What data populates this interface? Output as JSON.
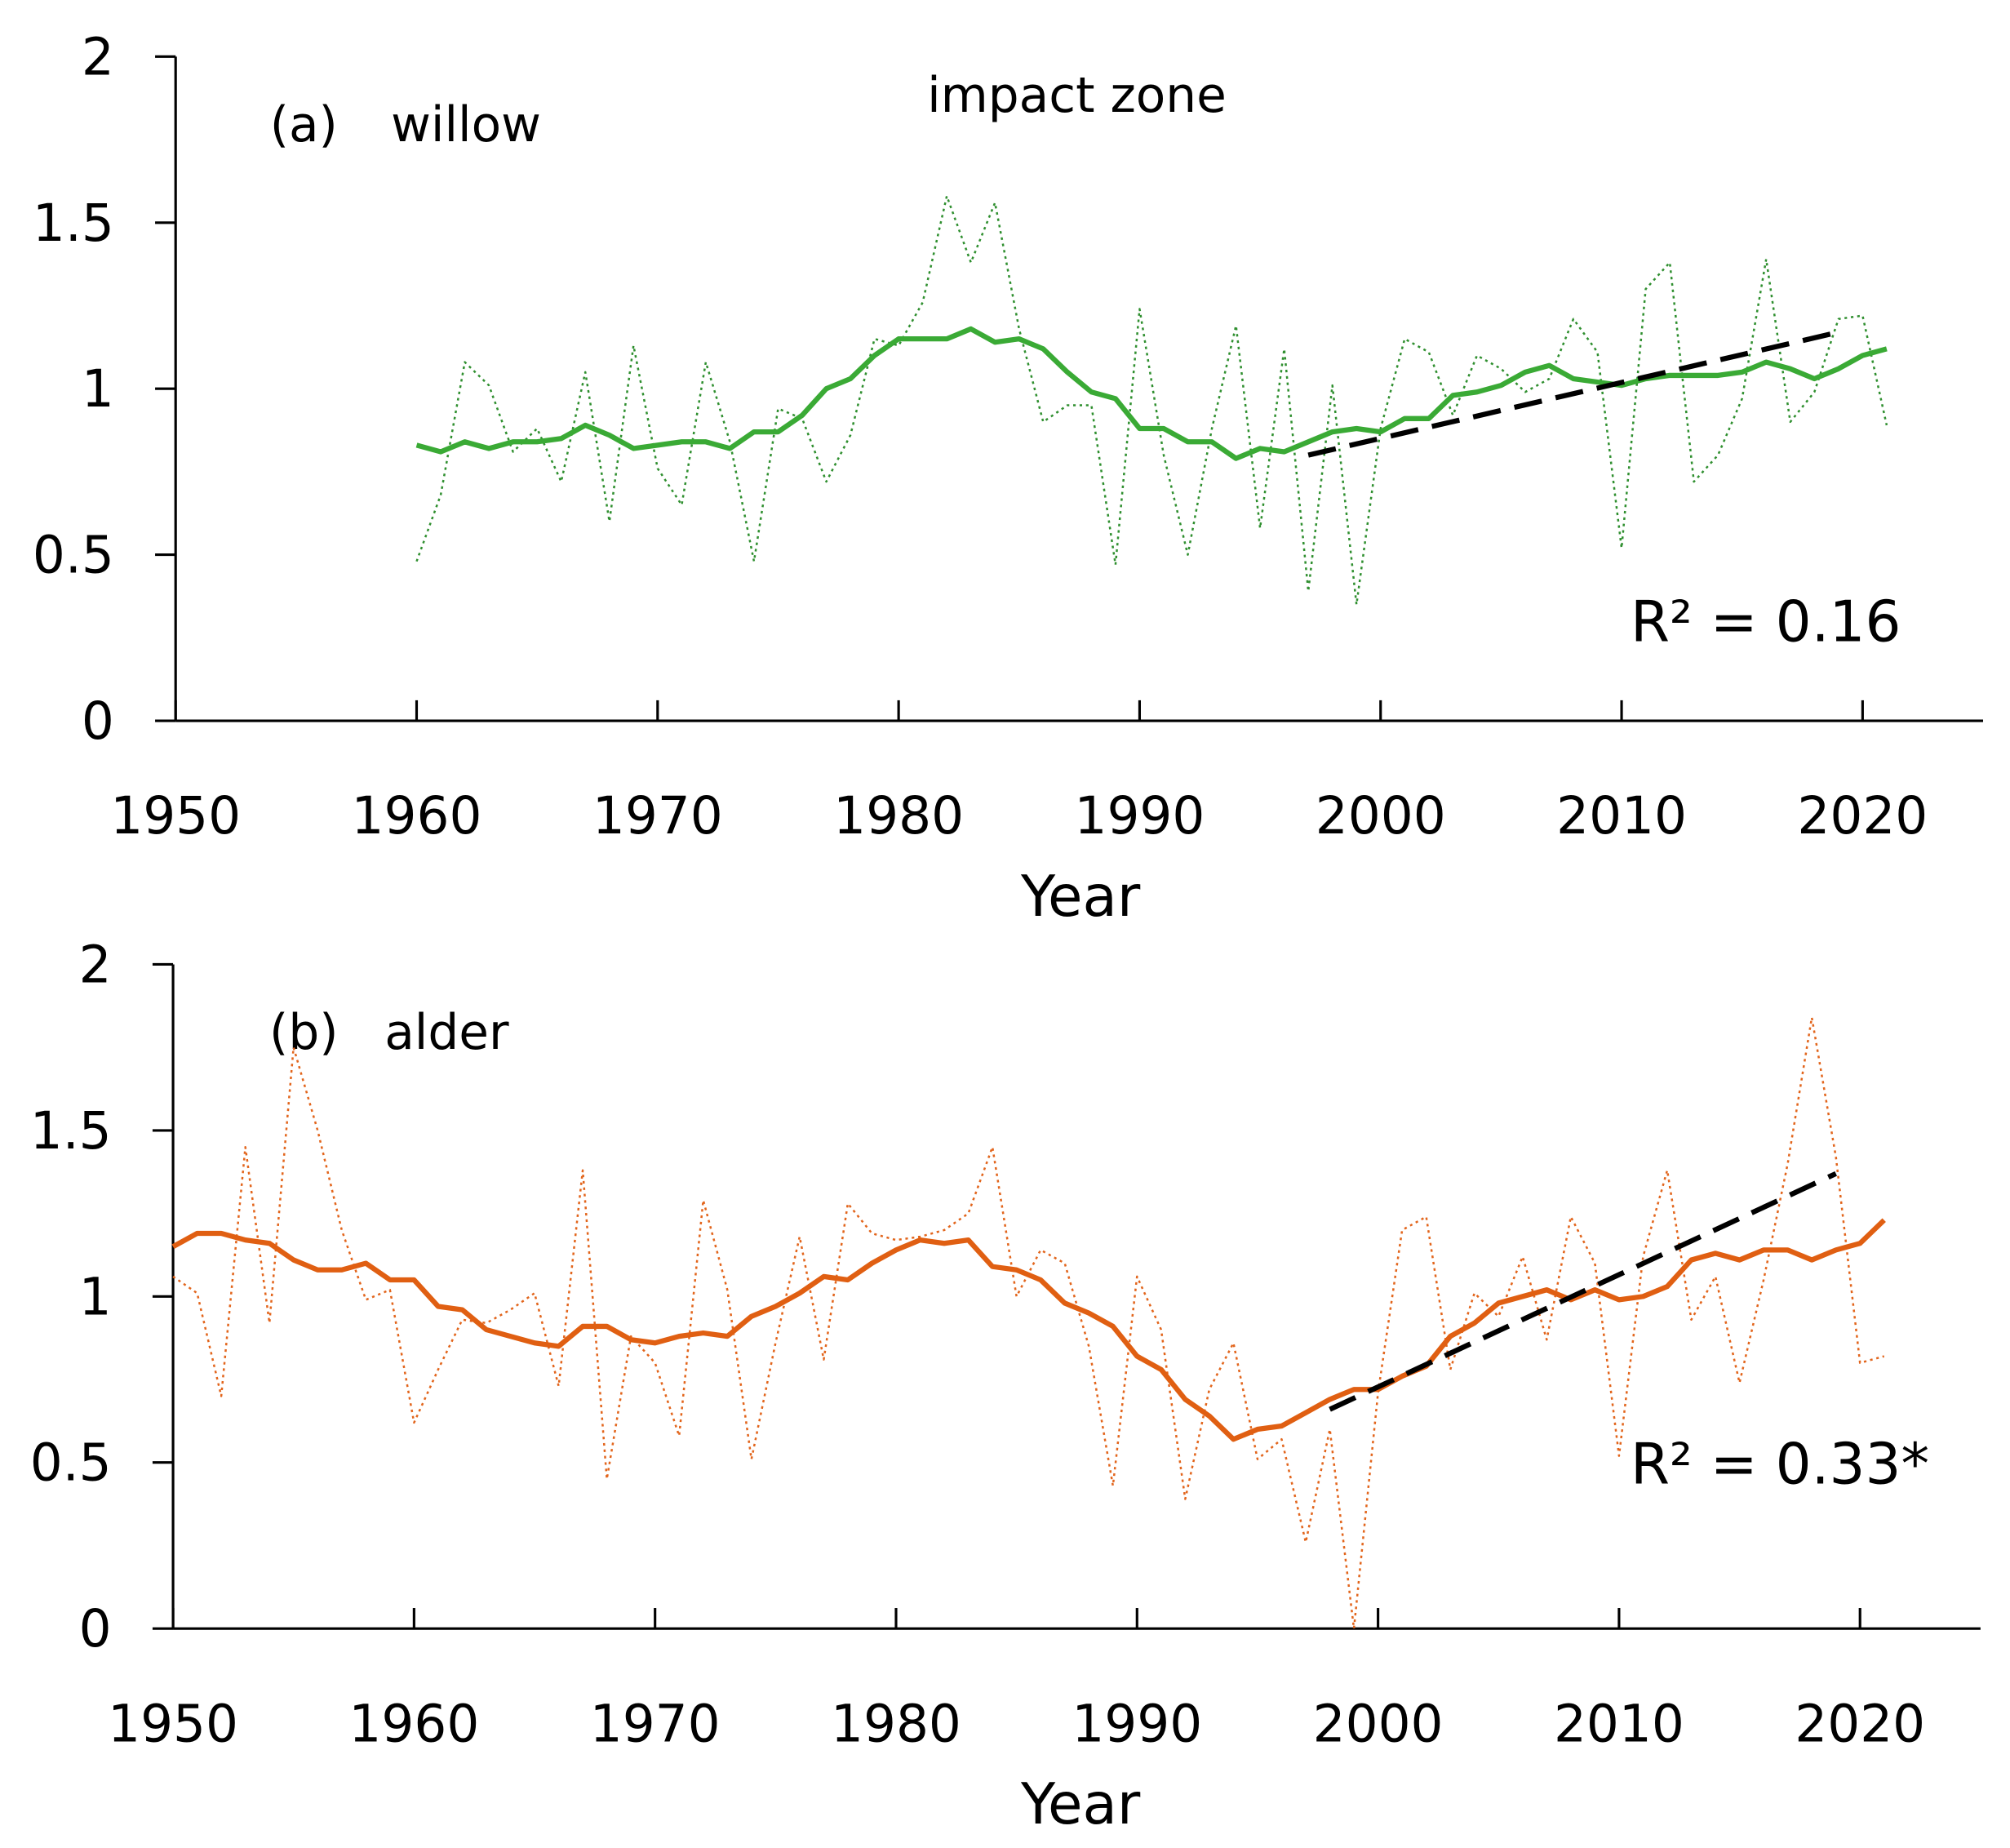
{
  "chart_data": [
    {
      "type": "line",
      "panel_label": "(a)",
      "species": "willow",
      "title": "impact zone",
      "annotation": "R² = 0.16",
      "xlabel": "Year",
      "xlim": [
        1950,
        2025
      ],
      "xticks": [
        1950,
        1960,
        1970,
        1980,
        1990,
        2000,
        2010,
        2020
      ],
      "ylim": [
        0,
        2
      ],
      "yticks": [
        0,
        0.5,
        1,
        1.5,
        2
      ],
      "x": [
        1960,
        1961,
        1962,
        1963,
        1964,
        1965,
        1966,
        1967,
        1968,
        1969,
        1970,
        1971,
        1972,
        1973,
        1974,
        1975,
        1976,
        1977,
        1978,
        1979,
        1980,
        1981,
        1982,
        1983,
        1984,
        1985,
        1986,
        1987,
        1988,
        1989,
        1990,
        1991,
        1992,
        1993,
        1994,
        1995,
        1996,
        1997,
        1998,
        1999,
        2000,
        2001,
        2002,
        2003,
        2004,
        2005,
        2006,
        2007,
        2008,
        2009,
        2010,
        2011,
        2012,
        2013,
        2014,
        2015,
        2016,
        2017,
        2018,
        2019,
        2020,
        2021
      ],
      "series": [
        {
          "style": "dotted",
          "color": "#2f8f2f",
          "values": [
            0.48,
            0.68,
            1.08,
            1.01,
            0.81,
            0.88,
            0.72,
            1.05,
            0.6,
            1.13,
            0.76,
            0.65,
            1.08,
            0.84,
            0.48,
            0.94,
            0.91,
            0.72,
            0.86,
            1.15,
            1.13,
            1.26,
            1.58,
            1.38,
            1.56,
            1.18,
            0.9,
            0.95,
            0.95,
            0.47,
            1.24,
            0.8,
            0.5,
            0.88,
            1.19,
            0.58,
            1.12,
            0.39,
            1.01,
            0.35,
            0.88,
            1.15,
            1.11,
            0.92,
            1.1,
            1.06,
            0.99,
            1.03,
            1.21,
            1.11,
            0.52,
            1.3,
            1.38,
            0.72,
            0.8,
            0.97,
            1.39,
            0.9,
            0.99,
            1.21,
            1.22,
            0.89
          ]
        },
        {
          "style": "solid",
          "color": "#3aaa35",
          "values": [
            0.83,
            0.81,
            0.84,
            0.82,
            0.84,
            0.84,
            0.85,
            0.89,
            0.86,
            0.82,
            0.83,
            0.84,
            0.84,
            0.82,
            0.87,
            0.87,
            0.92,
            1.0,
            1.03,
            1.1,
            1.15,
            1.15,
            1.15,
            1.18,
            1.14,
            1.15,
            1.12,
            1.05,
            0.99,
            0.97,
            0.88,
            0.88,
            0.84,
            0.84,
            0.79,
            0.82,
            0.81,
            0.84,
            0.87,
            0.88,
            0.87,
            0.91,
            0.91,
            0.98,
            0.99,
            1.01,
            1.05,
            1.07,
            1.03,
            1.02,
            1.01,
            1.03,
            1.04,
            1.04,
            1.04,
            1.05,
            1.08,
            1.06,
            1.03,
            1.06,
            1.1,
            1.12
          ]
        },
        {
          "style": "dashed",
          "color": "#000000",
          "x": [
            1997,
            2019
          ],
          "values": [
            0.8,
            1.17
          ]
        }
      ]
    },
    {
      "type": "line",
      "panel_label": "(b)",
      "species": "alder",
      "annotation": "R² = 0.33*",
      "xlabel": "Year",
      "xlim": [
        1950,
        2025
      ],
      "xticks": [
        1950,
        1960,
        1970,
        1980,
        1990,
        2000,
        2010,
        2020
      ],
      "ylim": [
        0,
        2
      ],
      "yticks": [
        0,
        0.5,
        1,
        1.5,
        2
      ],
      "x": [
        1950,
        1951,
        1952,
        1953,
        1954,
        1955,
        1956,
        1957,
        1958,
        1959,
        1960,
        1961,
        1962,
        1963,
        1964,
        1965,
        1966,
        1967,
        1968,
        1969,
        1970,
        1971,
        1972,
        1973,
        1974,
        1975,
        1976,
        1977,
        1978,
        1979,
        1980,
        1981,
        1982,
        1983,
        1984,
        1985,
        1986,
        1987,
        1988,
        1989,
        1990,
        1991,
        1992,
        1993,
        1994,
        1995,
        1996,
        1997,
        1998,
        1999,
        2000,
        2001,
        2002,
        2003,
        2004,
        2005,
        2006,
        2007,
        2008,
        2009,
        2010,
        2011,
        2012,
        2013,
        2014,
        2015,
        2016,
        2017,
        2018,
        2019,
        2020,
        2021
      ],
      "series": [
        {
          "style": "dotted",
          "color": "#e2651c",
          "values": [
            1.06,
            1.01,
            0.7,
            1.45,
            0.92,
            1.75,
            1.5,
            1.2,
            0.99,
            1.02,
            0.62,
            0.78,
            0.93,
            0.92,
            0.96,
            1.01,
            0.73,
            1.38,
            0.45,
            0.88,
            0.8,
            0.58,
            1.29,
            1.02,
            0.51,
            0.86,
            1.18,
            0.81,
            1.28,
            1.19,
            1.17,
            1.18,
            1.2,
            1.25,
            1.45,
            1.0,
            1.14,
            1.1,
            0.85,
            0.43,
            1.06,
            0.9,
            0.39,
            0.72,
            0.86,
            0.51,
            0.57,
            0.26,
            0.6,
            0.0,
            0.71,
            1.2,
            1.24,
            0.78,
            1.01,
            0.94,
            1.12,
            0.87,
            1.24,
            1.1,
            0.52,
            1.12,
            1.38,
            0.93,
            1.06,
            0.74,
            1.05,
            1.4,
            1.84,
            1.42,
            0.8,
            0.82
          ]
        },
        {
          "style": "solid",
          "color": "#e05f12",
          "values": [
            1.15,
            1.19,
            1.19,
            1.17,
            1.16,
            1.11,
            1.08,
            1.08,
            1.1,
            1.05,
            1.05,
            0.97,
            0.96,
            0.9,
            0.88,
            0.86,
            0.85,
            0.91,
            0.91,
            0.87,
            0.86,
            0.88,
            0.89,
            0.88,
            0.94,
            0.97,
            1.01,
            1.06,
            1.05,
            1.1,
            1.14,
            1.17,
            1.16,
            1.17,
            1.09,
            1.08,
            1.05,
            0.98,
            0.95,
            0.91,
            0.82,
            0.78,
            0.69,
            0.64,
            0.57,
            0.6,
            0.61,
            0.65,
            0.69,
            0.72,
            0.72,
            0.76,
            0.79,
            0.88,
            0.92,
            0.98,
            1.0,
            1.02,
            0.99,
            1.02,
            0.99,
            1.0,
            1.03,
            1.11,
            1.13,
            1.11,
            1.14,
            1.14,
            1.11,
            1.14,
            1.16,
            1.23
          ]
        },
        {
          "style": "dashed",
          "color": "#000000",
          "x": [
            1998,
            2019
          ],
          "values": [
            0.66,
            1.37
          ]
        }
      ]
    }
  ]
}
